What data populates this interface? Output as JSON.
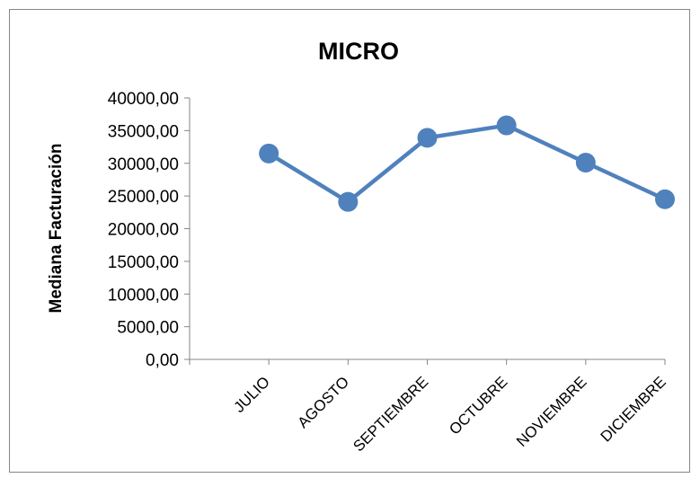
{
  "chart_data": {
    "type": "line",
    "title": "MICRO",
    "xlabel": "",
    "ylabel": "Mediana Facturación",
    "categories": [
      "JULIO",
      "AGOSTO",
      "SEPTIEMBRE",
      "OCTUBRE",
      "NOVIEMBRE",
      "DICIEMBRE"
    ],
    "series": [
      {
        "values": [
          31500,
          24100,
          33900,
          35800,
          30100,
          24500
        ]
      }
    ],
    "ylim": [
      0,
      40000
    ],
    "yticks": [
      "0,00",
      "5000,00",
      "10000,00",
      "15000,00",
      "20000,00",
      "25000,00",
      "30000,00",
      "35000,00",
      "40000,00"
    ],
    "grid": false,
    "legend": "none",
    "colors": {
      "series": "#4f81bd",
      "axis": "#868686",
      "border": "#868686"
    }
  }
}
